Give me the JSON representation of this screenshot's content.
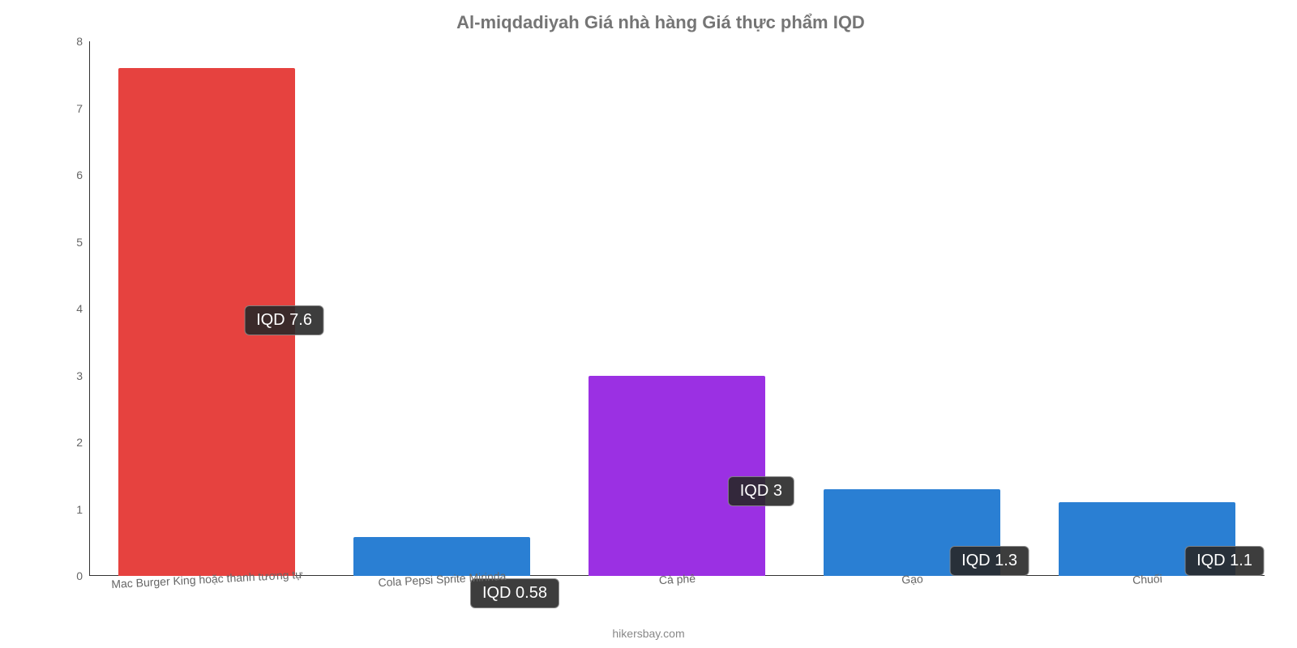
{
  "chart": {
    "type": "bar",
    "title": "Al-miqdadiyah Giá nhà hàng Giá thực phẩm IQD",
    "title_color": "#757575",
    "title_fontsize": 22,
    "background_color": "#ffffff",
    "credit": "hikersbay.com",
    "credit_color": "#888888",
    "credit_fontsize": 14,
    "y": {
      "min": 0,
      "max": 8,
      "ticks": [
        0,
        1,
        2,
        3,
        4,
        5,
        6,
        7,
        8
      ],
      "tick_color": "#666666",
      "tick_fontsize": 14
    },
    "x_label_color": "#666666",
    "x_label_fontsize": 14,
    "bar_width_pct": 75,
    "data_label_fontsize": 20,
    "categories": [
      {
        "label": "Mac Burger King hoặc thanh tương tự",
        "value": 7.6,
        "display": "IQD 7.6",
        "color": "#e6423f",
        "label_offset_pct": 45
      },
      {
        "label": "Cola Pepsi Sprite Mirinda",
        "value": 0.58,
        "display": "IQD 0.58",
        "color": "#2a7fd3",
        "label_offset_pct": -6
      },
      {
        "label": "Cà phê",
        "value": 3.0,
        "display": "IQD 3",
        "color": "#9b30e3",
        "label_offset_pct": 13
      },
      {
        "label": "Gạo",
        "value": 1.3,
        "display": "IQD 1.3",
        "color": "#2a7fd3",
        "label_offset_pct": 0
      },
      {
        "label": "Chuối",
        "value": 1.1,
        "display": "IQD 1.1",
        "color": "#2a7fd3",
        "label_offset_pct": 0
      }
    ]
  }
}
